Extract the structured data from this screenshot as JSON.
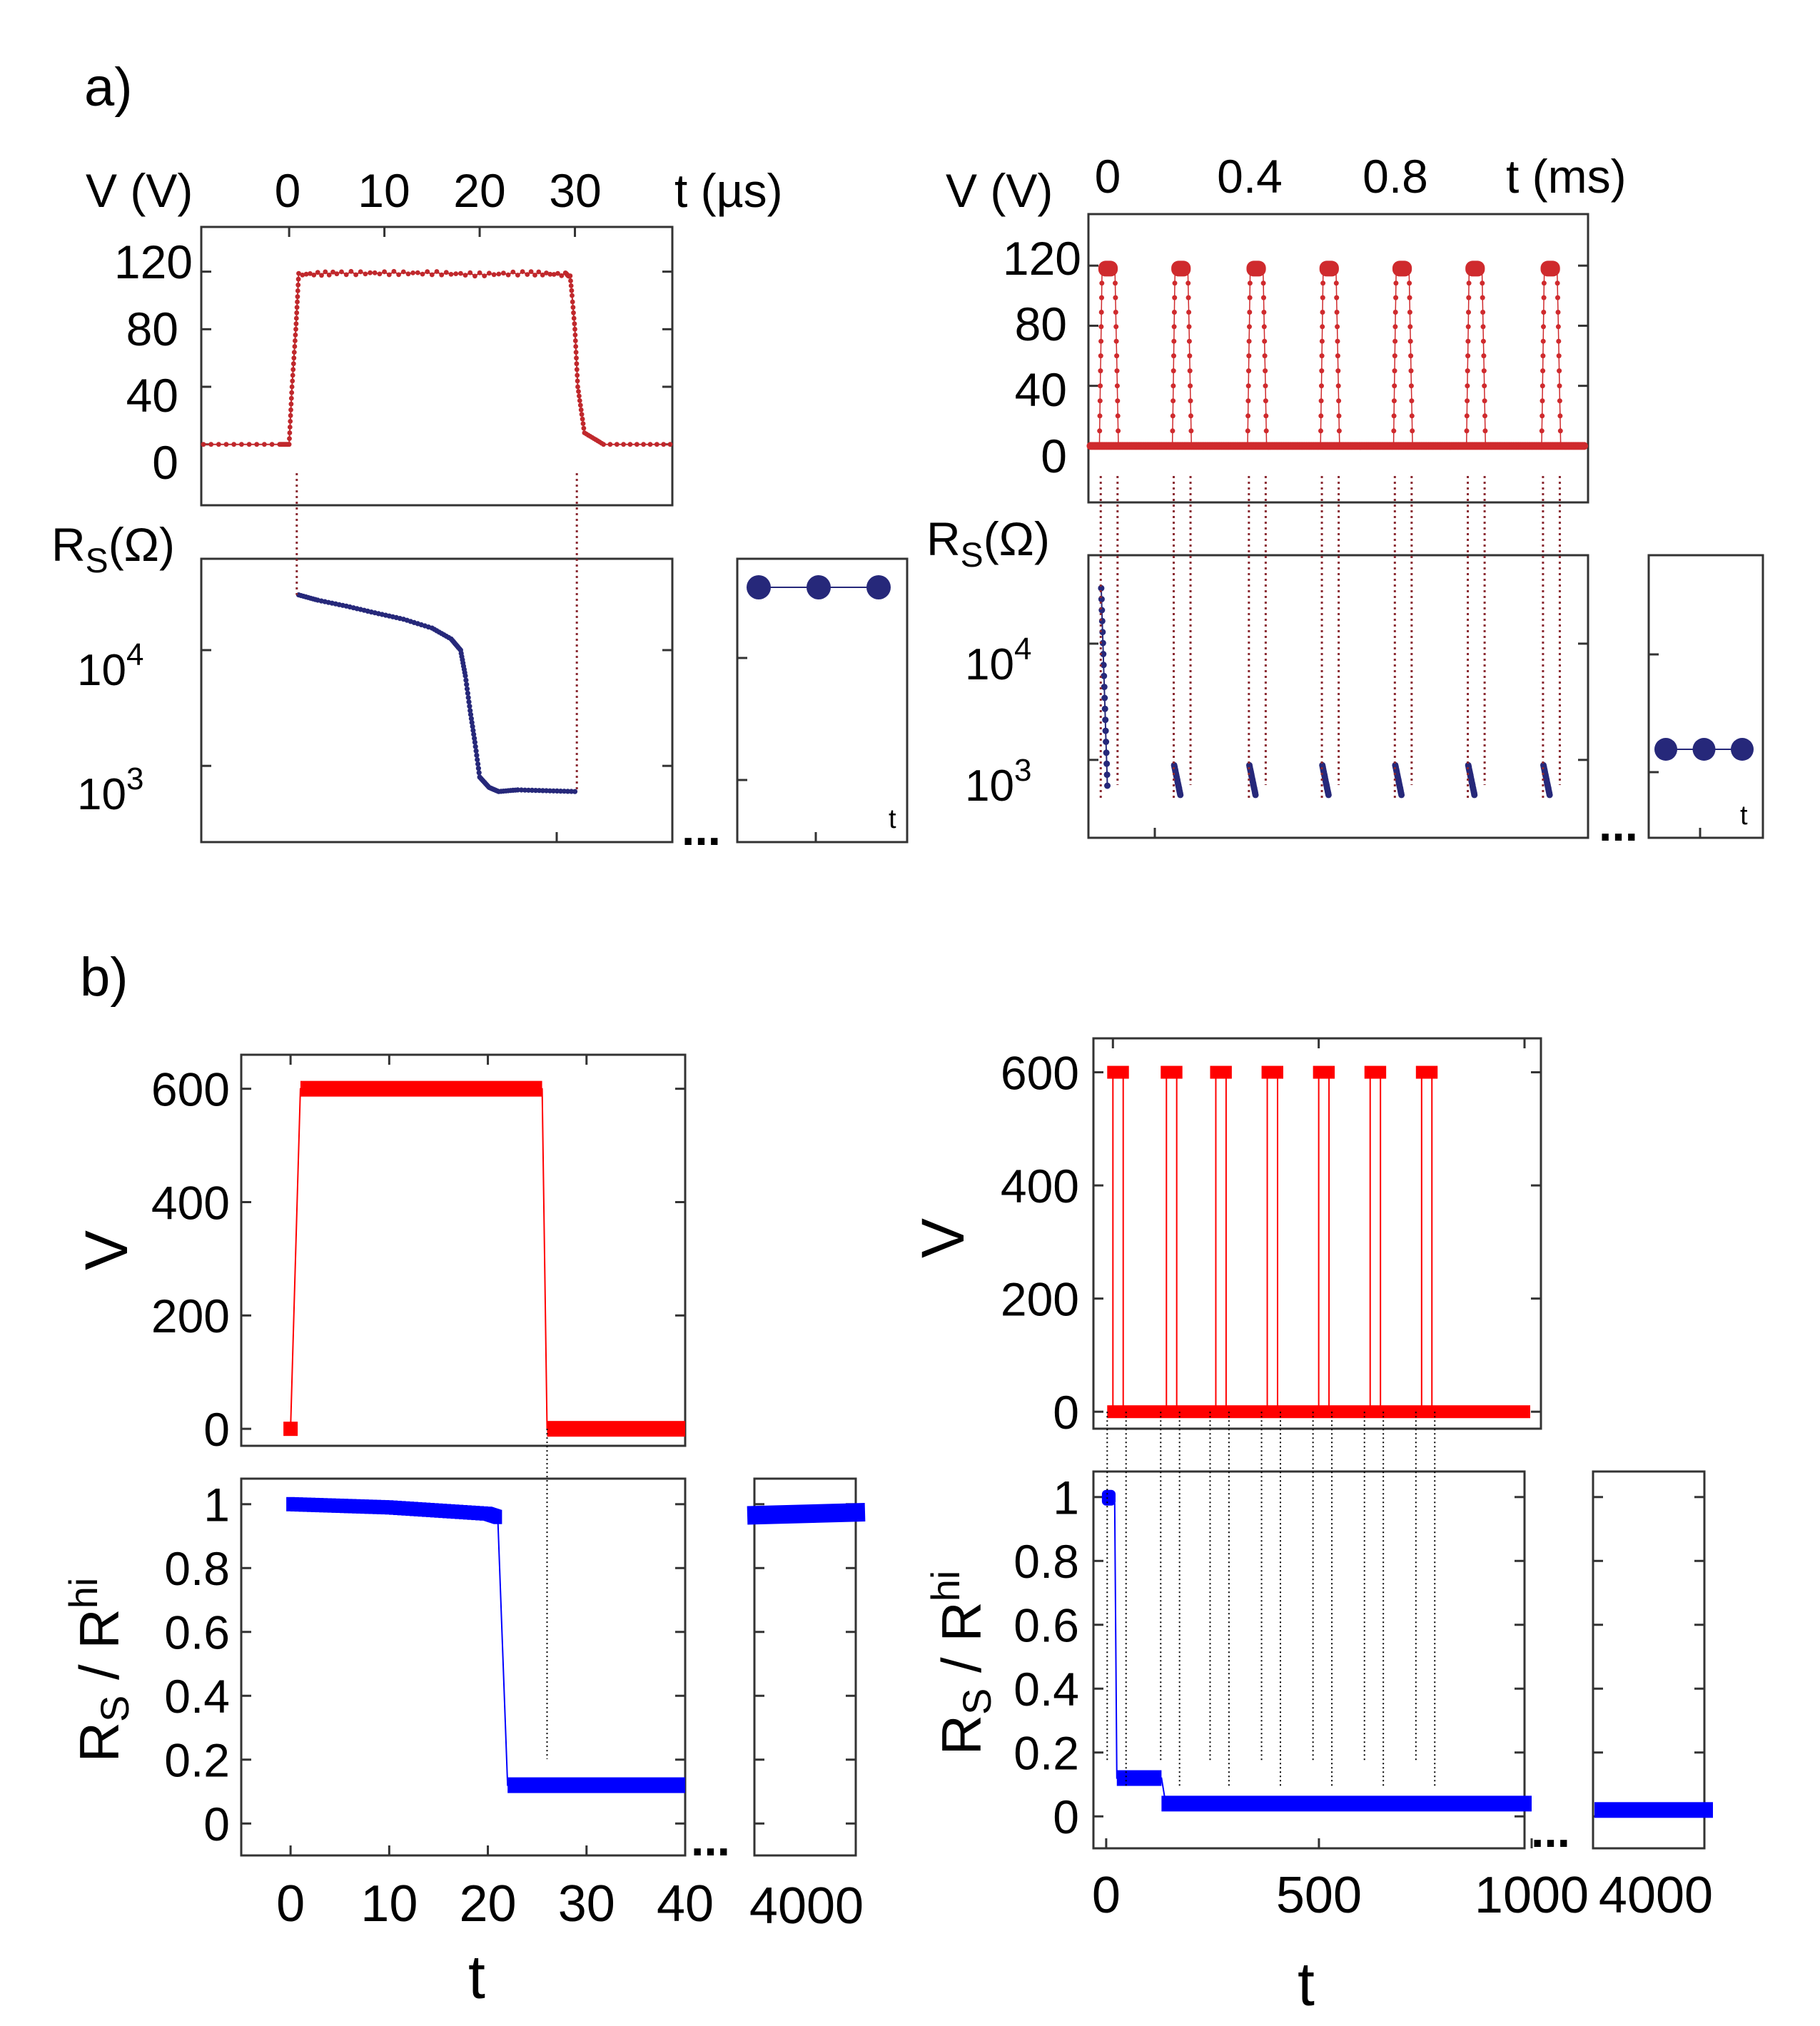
{
  "panel_labels": {
    "a": "a)",
    "b": "b)"
  },
  "chart_data": [
    {
      "panel": "a-left-V",
      "type": "line",
      "xlabel": "t (µs)",
      "ylabel": "V (V)",
      "xticks": [
        "0",
        "10",
        "20",
        "30"
      ],
      "yticks": [
        "120",
        "80",
        "40",
        "0"
      ],
      "xlim": [
        -9,
        40
      ],
      "ylim": [
        -20,
        160
      ],
      "color": "#c0282c",
      "series": [
        {
          "x": [
            -9,
            -1,
            0,
            0.3,
            0.7,
            1,
            5,
            10,
            15,
            20,
            25,
            29,
            29.5,
            30,
            30.3,
            31,
            33,
            40
          ],
          "y": [
            0,
            0,
            0,
            40,
            80,
            118,
            119,
            119,
            119,
            118,
            119,
            118,
            118,
            80,
            40,
            8,
            0,
            0
          ]
        }
      ]
    },
    {
      "panel": "a-left-RS",
      "type": "line",
      "ylabel": "R_S(Ω)",
      "yscale": "log",
      "ytick_labels": [
        {
          "base": "10",
          "exp": "4"
        },
        {
          "base": "10",
          "exp": "3"
        }
      ],
      "xlim": [
        -9,
        40
      ],
      "ylim": [
        300,
        200000
      ],
      "color": "#26287a",
      "series": [
        {
          "x": [
            1,
            3,
            6,
            9,
            12,
            15,
            17,
            18,
            18.5,
            19,
            19.5,
            20,
            21,
            22,
            24,
            27,
            30
          ],
          "y": [
            30000,
            27000,
            24000,
            21000,
            18500,
            15500,
            12500,
            10000,
            6000,
            3000,
            1600,
            800,
            650,
            600,
            620,
            610,
            600
          ]
        }
      ]
    },
    {
      "panel": "a-left-RS-inset",
      "type": "scatter",
      "xlabel": "t",
      "color": "#26287a",
      "series": [
        {
          "x": [
            1,
            2,
            3
          ],
          "y": [
            1,
            1,
            1
          ]
        }
      ]
    },
    {
      "panel": "a-right-V",
      "type": "line",
      "xlabel": "t (ms)",
      "ylabel": "V (V)",
      "xticks": [
        "0",
        "0.4",
        "0.8"
      ],
      "yticks": [
        "120",
        "80",
        "40",
        "0"
      ],
      "xlim": [
        -0.02,
        1.1
      ],
      "ylim": [
        -20,
        160
      ],
      "color": "#cf2a2d",
      "pulse_starts": [
        0,
        0.165,
        0.335,
        0.5,
        0.665,
        0.83,
        1.0
      ],
      "pulse_width": 0.035,
      "pulse_high": 118,
      "pulse_low": 0
    },
    {
      "panel": "a-right-RS",
      "type": "line",
      "ylabel": "R_S(Ω)",
      "yscale": "log",
      "ytick_labels": [
        {
          "base": "10",
          "exp": "4"
        },
        {
          "base": "10",
          "exp": "3"
        }
      ],
      "ylim": [
        300,
        200000
      ],
      "color": "#26287a",
      "first_drop": [
        30000,
        600
      ],
      "later_drops": [
        900,
        500
      ]
    },
    {
      "panel": "a-right-RS-inset",
      "type": "scatter",
      "xlabel": "t",
      "color": "#26287a",
      "series": [
        {
          "x": [
            1,
            2,
            3
          ],
          "y": [
            1500,
            1500,
            1500
          ]
        }
      ]
    },
    {
      "panel": "b-left-V",
      "type": "line",
      "ylabel": "V",
      "yticks": [
        "0",
        "200",
        "400",
        "600"
      ],
      "xlim": [
        -5,
        40
      ],
      "ylim": [
        -30,
        660
      ],
      "color": "#ff0000",
      "series": [
        {
          "x": [
            0,
            1,
            25.5,
            26,
            40
          ],
          "y": [
            0,
            600,
            600,
            0,
            0
          ]
        }
      ]
    },
    {
      "panel": "b-left-RS",
      "type": "line",
      "xlabel": "t",
      "ylabel": "R_S / R^hi",
      "xticks": [
        "0",
        "10",
        "20",
        "30",
        "40"
      ],
      "yticks": [
        "0",
        "0.2",
        "0.4",
        "0.6",
        "0.8",
        "1"
      ],
      "xlim": [
        -5,
        40
      ],
      "ylim": [
        -0.1,
        1.08
      ],
      "color": "#0000ff",
      "series": [
        {
          "x": [
            0,
            5,
            10,
            15,
            20,
            21,
            22,
            30,
            40
          ],
          "y": [
            1.0,
            0.995,
            0.99,
            0.98,
            0.97,
            0.96,
            0.12,
            0.12,
            0.12
          ]
        }
      ]
    },
    {
      "panel": "b-left-RS-inset",
      "type": "line",
      "xticks": [
        "4000"
      ],
      "color": "#0000ff",
      "series": [
        {
          "x": [
            0,
            1
          ],
          "y": [
            0.965,
            0.975
          ]
        }
      ]
    },
    {
      "panel": "b-right-V",
      "type": "line",
      "ylabel": "V",
      "yticks": [
        "0",
        "200",
        "400",
        "600"
      ],
      "xlim": [
        -30,
        1000
      ],
      "ylim": [
        -30,
        660
      ],
      "color": "#ff0000",
      "pulse_starts": [
        0,
        130,
        250,
        375,
        500,
        625,
        750
      ],
      "pulse_width": 25,
      "pulse_high": 600,
      "pulse_low": 0
    },
    {
      "panel": "b-right-RS",
      "type": "line",
      "xlabel": "t",
      "ylabel": "R_S / R^hi",
      "xticks": [
        "0",
        "500",
        "1000"
      ],
      "yticks": [
        "0",
        "0.2",
        "0.4",
        "0.6",
        "0.8",
        "1"
      ],
      "xlim": [
        -30,
        1000
      ],
      "ylim": [
        -0.1,
        1.08
      ],
      "color": "#0000ff",
      "series": [
        {
          "x": [
            0,
            20,
            25,
            130,
            140,
            150,
            250,
            500,
            750,
            1000
          ],
          "y": [
            1.0,
            0.98,
            0.12,
            0.12,
            0.04,
            0.03,
            0.03,
            0.02,
            0.02,
            0.02
          ]
        }
      ]
    },
    {
      "panel": "b-right-RS-inset",
      "type": "line",
      "xticks": [
        "4000"
      ],
      "color": "#0000ff",
      "series": [
        {
          "x": [
            0,
            1
          ],
          "y": [
            0.02,
            0.02
          ]
        }
      ]
    }
  ],
  "ellipsis": "..."
}
